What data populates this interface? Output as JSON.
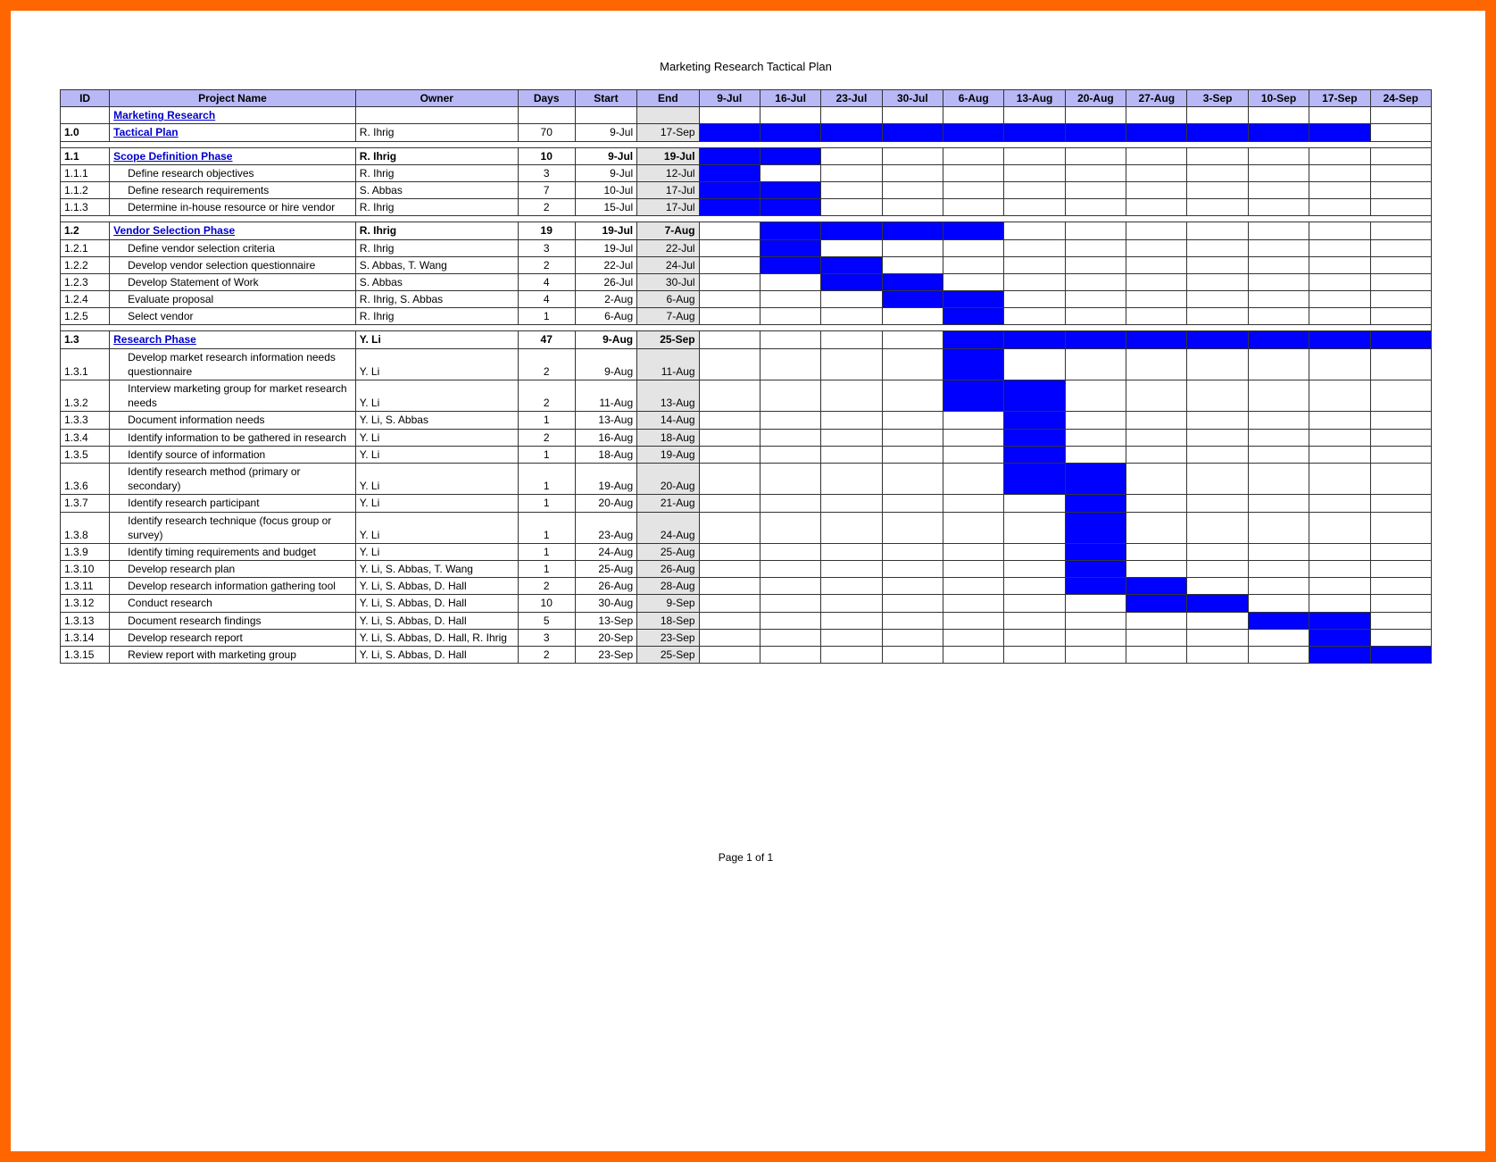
{
  "doc_title": "Marketing Research Tactical Plan",
  "footer": "Page 1 of 1",
  "columns": {
    "id": "ID",
    "name": "Project Name",
    "owner": "Owner",
    "days": "Days",
    "start": "Start",
    "end": "End"
  },
  "weeks": [
    "9-Jul",
    "16-Jul",
    "23-Jul",
    "30-Jul",
    "6-Aug",
    "13-Aug",
    "20-Aug",
    "27-Aug",
    "3-Sep",
    "10-Sep",
    "17-Sep",
    "24-Sep"
  ],
  "colors": {
    "frame_border": "#ff6600",
    "header_bg": "#b8b8f7",
    "end_col_bg": "#e4e4e4",
    "gantt_fill": "#0000ff",
    "link_text": "#0000cc",
    "grid": "#333333"
  },
  "rows": [
    {
      "type": "title",
      "id": "",
      "name": "Marketing Research",
      "owner": "",
      "days": "",
      "start": "",
      "end": "",
      "bars": []
    },
    {
      "type": "title",
      "id": "1.0",
      "name": "Tactical Plan",
      "owner": "R. Ihrig",
      "days": "70",
      "start": "9-Jul",
      "end": "17-Sep",
      "bars": [
        0,
        1,
        2,
        3,
        4,
        5,
        6,
        7,
        8,
        9,
        10
      ]
    },
    {
      "type": "spacer"
    },
    {
      "type": "phase",
      "id": "1.1",
      "name": "Scope Definition Phase",
      "owner": "R. Ihrig",
      "days": "10",
      "start": "9-Jul",
      "end": "19-Jul",
      "bars": [
        0,
        1
      ]
    },
    {
      "type": "task",
      "id": "1.1.1",
      "name": "Define research objectives",
      "owner": "R. Ihrig",
      "days": "3",
      "start": "9-Jul",
      "end": "12-Jul",
      "bars": [
        0
      ]
    },
    {
      "type": "task",
      "id": "1.1.2",
      "name": "Define research requirements",
      "owner": "S. Abbas",
      "days": "7",
      "start": "10-Jul",
      "end": "17-Jul",
      "bars": [
        0,
        1
      ]
    },
    {
      "type": "task",
      "id": "1.1.3",
      "name": "Determine in-house resource or hire vendor",
      "owner": "R. Ihrig",
      "days": "2",
      "start": "15-Jul",
      "end": "17-Jul",
      "bars": [
        0,
        1
      ]
    },
    {
      "type": "spacer"
    },
    {
      "type": "phase",
      "id": "1.2",
      "name": "Vendor Selection Phase",
      "owner": "R. Ihrig",
      "days": "19",
      "start": "19-Jul",
      "end": "7-Aug",
      "bars": [
        1,
        2,
        3,
        4
      ]
    },
    {
      "type": "task",
      "id": "1.2.1",
      "name": "Define vendor selection criteria",
      "owner": "R. Ihrig",
      "days": "3",
      "start": "19-Jul",
      "end": "22-Jul",
      "bars": [
        1
      ]
    },
    {
      "type": "task",
      "id": "1.2.2",
      "name": "Develop vendor selection questionnaire",
      "owner": "S. Abbas, T. Wang",
      "days": "2",
      "start": "22-Jul",
      "end": "24-Jul",
      "bars": [
        1,
        2
      ]
    },
    {
      "type": "task",
      "id": "1.2.3",
      "name": "Develop Statement of Work",
      "owner": "S. Abbas",
      "days": "4",
      "start": "26-Jul",
      "end": "30-Jul",
      "bars": [
        2,
        3
      ]
    },
    {
      "type": "task",
      "id": "1.2.4",
      "name": "Evaluate proposal",
      "owner": "R. Ihrig, S. Abbas",
      "days": "4",
      "start": "2-Aug",
      "end": "6-Aug",
      "bars": [
        3,
        4
      ]
    },
    {
      "type": "task",
      "id": "1.2.5",
      "name": "Select vendor",
      "owner": "R. Ihrig",
      "days": "1",
      "start": "6-Aug",
      "end": "7-Aug",
      "bars": [
        4
      ]
    },
    {
      "type": "spacer"
    },
    {
      "type": "phase",
      "id": "1.3",
      "name": "Research Phase",
      "owner": "Y. Li",
      "days": "47",
      "start": "9-Aug",
      "end": "25-Sep",
      "bars": [
        4,
        5,
        6,
        7,
        8,
        9,
        10,
        11
      ]
    },
    {
      "type": "task",
      "id": "1.3.1",
      "name": "Develop market research information needs questionnaire",
      "owner": "Y. Li",
      "days": "2",
      "start": "9-Aug",
      "end": "11-Aug",
      "bars": [
        4
      ]
    },
    {
      "type": "task",
      "id": "1.3.2",
      "name": "Interview marketing group for market research needs",
      "owner": "Y. Li",
      "days": "2",
      "start": "11-Aug",
      "end": "13-Aug",
      "bars": [
        4,
        5
      ]
    },
    {
      "type": "task",
      "id": "1.3.3",
      "name": "Document information needs",
      "owner": "Y. Li, S. Abbas",
      "days": "1",
      "start": "13-Aug",
      "end": "14-Aug",
      "bars": [
        5
      ]
    },
    {
      "type": "task",
      "id": "1.3.4",
      "name": "Identify information to be gathered in research",
      "owner": "Y. Li",
      "days": "2",
      "start": "16-Aug",
      "end": "18-Aug",
      "bars": [
        5
      ]
    },
    {
      "type": "task",
      "id": "1.3.5",
      "name": "Identify source of information",
      "owner": "Y. Li",
      "days": "1",
      "start": "18-Aug",
      "end": "19-Aug",
      "bars": [
        5
      ]
    },
    {
      "type": "task",
      "id": "1.3.6",
      "name": "Identify research method (primary or secondary)",
      "owner": "Y. Li",
      "days": "1",
      "start": "19-Aug",
      "end": "20-Aug",
      "bars": [
        5,
        6
      ]
    },
    {
      "type": "task",
      "id": "1.3.7",
      "name": "Identify research participant",
      "owner": "Y. Li",
      "days": "1",
      "start": "20-Aug",
      "end": "21-Aug",
      "bars": [
        6
      ]
    },
    {
      "type": "task",
      "id": "1.3.8",
      "name": "Identify research technique (focus group or survey)",
      "owner": "Y. Li",
      "days": "1",
      "start": "23-Aug",
      "end": "24-Aug",
      "bars": [
        6
      ]
    },
    {
      "type": "task",
      "id": "1.3.9",
      "name": "Identify timing requirements and budget",
      "owner": "Y. Li",
      "days": "1",
      "start": "24-Aug",
      "end": "25-Aug",
      "bars": [
        6
      ]
    },
    {
      "type": "task",
      "id": "1.3.10",
      "name": "Develop research plan",
      "owner": "Y. Li, S. Abbas, T. Wang",
      "days": "1",
      "start": "25-Aug",
      "end": "26-Aug",
      "bars": [
        6
      ]
    },
    {
      "type": "task",
      "id": "1.3.11",
      "name": "Develop research information gathering tool",
      "owner": "Y. Li, S. Abbas, D. Hall",
      "days": "2",
      "start": "26-Aug",
      "end": "28-Aug",
      "bars": [
        6,
        7
      ]
    },
    {
      "type": "task",
      "id": "1.3.12",
      "name": "Conduct research",
      "owner": "Y. Li, S. Abbas, D. Hall",
      "days": "10",
      "start": "30-Aug",
      "end": "9-Sep",
      "bars": [
        7,
        8
      ]
    },
    {
      "type": "task",
      "id": "1.3.13",
      "name": "Document research findings",
      "owner": "Y. Li, S. Abbas, D. Hall",
      "days": "5",
      "start": "13-Sep",
      "end": "18-Sep",
      "bars": [
        9,
        10
      ]
    },
    {
      "type": "task",
      "id": "1.3.14",
      "name": "Develop research report",
      "owner": "Y. Li, S. Abbas, D. Hall, R. Ihrig",
      "days": "3",
      "start": "20-Sep",
      "end": "23-Sep",
      "bars": [
        10
      ]
    },
    {
      "type": "task",
      "id": "1.3.15",
      "name": "Review report with marketing group",
      "owner": "Y. Li, S. Abbas, D. Hall",
      "days": "2",
      "start": "23-Sep",
      "end": "25-Sep",
      "bars": [
        10,
        11
      ]
    }
  ]
}
